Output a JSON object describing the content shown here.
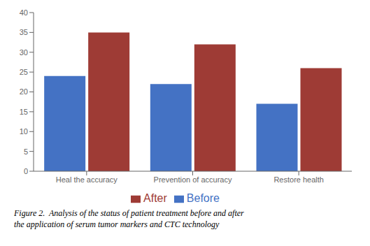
{
  "chart_data": {
    "type": "bar",
    "categories": [
      "Heal the accuracy",
      "Prevention of accuracy",
      "Restore health"
    ],
    "series": [
      {
        "name": "Before",
        "color": "#4472C4",
        "values": [
          24,
          22,
          17
        ]
      },
      {
        "name": "After",
        "color": "#9E3B35",
        "values": [
          35,
          32,
          26
        ]
      }
    ],
    "ylim": [
      0,
      40
    ],
    "yticks": [
      0,
      5,
      10,
      15,
      20,
      25,
      30,
      35,
      40
    ],
    "grid": false,
    "legend": "bottom",
    "annotations": [
      "Figure 2.  Analysis of the status of patient treatment before and after",
      "the application of serum tumor markers and CTC technology"
    ]
  }
}
